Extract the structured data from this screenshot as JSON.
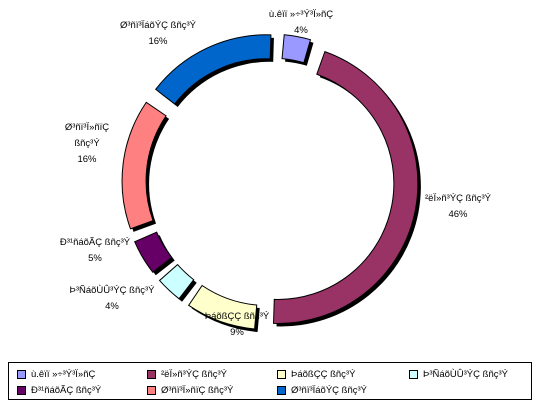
{
  "chart_data": {
    "type": "pie",
    "variant": "donut",
    "slices": [
      {
        "label": "ù.êïï »÷³Ý³Ï»ñÇ",
        "value": 4,
        "pct_label": "4%",
        "color": "#9999ff"
      },
      {
        "label": "²ëÏ»ñ³ÝÇ ßñç³Ý",
        "value": 46,
        "pct_label": "46%",
        "color": "#993366"
      },
      {
        "label": "ÞáõßÇÇ ßñç³Ý",
        "value": 9,
        "pct_label": "9%",
        "color": "#ffffcc"
      },
      {
        "label": "Þ³ÑáõÙÛ³ÝÇ ßñç³Ý",
        "value": 4,
        "pct_label": "4%",
        "color": "#ccffff"
      },
      {
        "label": "Ð³¹ñáõÃÇ ßñç³Ý",
        "value": 5,
        "pct_label": "5%",
        "color": "#660066"
      },
      {
        "label": "Ø³ñï³Ï»ñïÇ ßñç³Ý",
        "value": 16,
        "pct_label": "16%",
        "color": "#ff8080"
      },
      {
        "label": "Ø³ñï³ÏáõÝÇ ßñç³Ý",
        "value": 16,
        "pct_label": "16%",
        "color": "#0066cc"
      }
    ],
    "legend_position": "bottom",
    "exploded": true
  }
}
